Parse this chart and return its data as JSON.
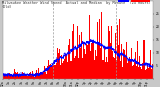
{
  "bg_color": "#c8c8c8",
  "plot_bg_color": "#ffffff",
  "bar_color": "#ff0000",
  "median_color": "#0000ff",
  "ylim": [
    0,
    30
  ],
  "ytick_labels": [
    "",
    "5",
    "10",
    "15",
    "20",
    "25"
  ],
  "ytick_vals": [
    0,
    5,
    10,
    15,
    20,
    25
  ],
  "n_points": 1440,
  "vline_positions": [
    480,
    1080
  ],
  "vline_color": "#999999",
  "legend_actual_color": "#ff0000",
  "legend_median_color": "#0000ff",
  "tick_fontsize": 2.2,
  "title_fontsize": 2.5
}
